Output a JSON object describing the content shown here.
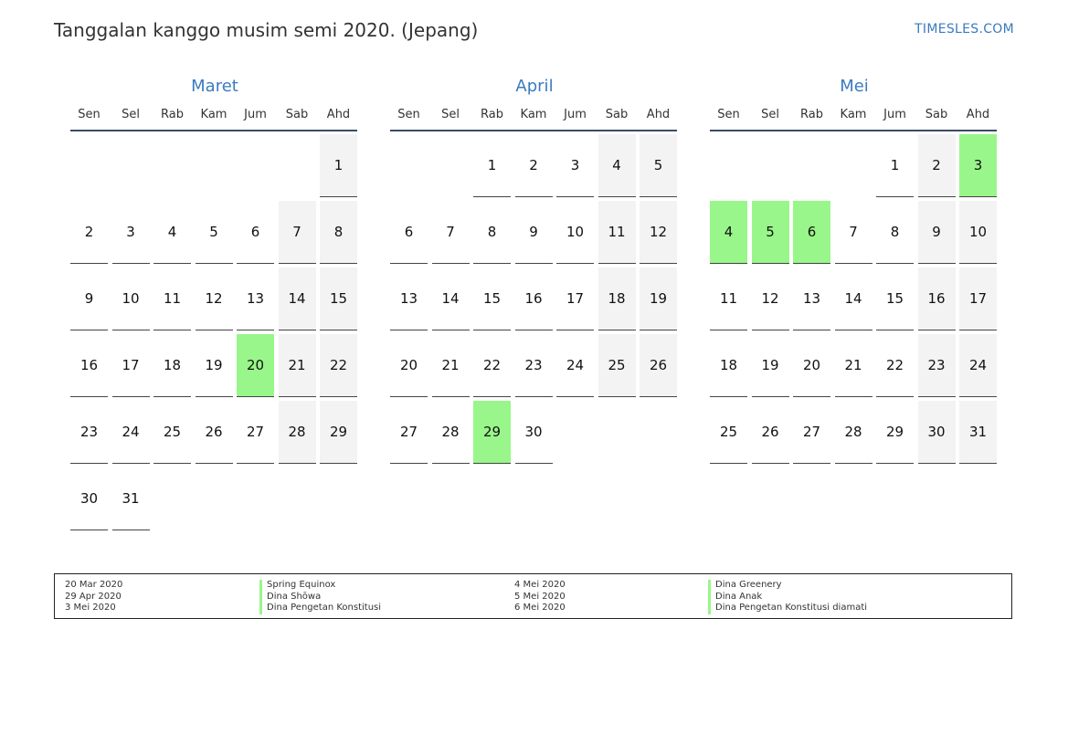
{
  "header": {
    "title": "Tanggalan kanggo musim semi 2020. (Jepang)",
    "site": "TIMESLES.COM"
  },
  "colors": {
    "accent": "#3a7bbf",
    "holiday": "#99f68a",
    "weekend": "#f3f3f3",
    "rule": "#3b4a66"
  },
  "weekdays": [
    "Sen",
    "Sel",
    "Rab",
    "Kam",
    "Jum",
    "Sab",
    "Ahd"
  ],
  "months": [
    {
      "name": "Maret",
      "offset": 6,
      "days": 31,
      "holidays": [
        20
      ]
    },
    {
      "name": "April",
      "offset": 2,
      "days": 30,
      "holidays": [
        29
      ]
    },
    {
      "name": "Mei",
      "offset": 4,
      "days": 31,
      "holidays": [
        3,
        4,
        5,
        6
      ]
    }
  ],
  "legend": {
    "left_dates": [
      "20 Mar 2020",
      "29 Apr 2020",
      "3 Mei 2020"
    ],
    "left_names": [
      "Spring Equinox",
      "Dina Shōwa",
      "Dina Pengetan Konstitusi"
    ],
    "right_dates": [
      "4 Mei 2020",
      "5 Mei 2020",
      "6 Mei 2020"
    ],
    "right_names": [
      "Dina Greenery",
      "Dina Anak",
      "Dina Pengetan Konstitusi diamati"
    ]
  }
}
